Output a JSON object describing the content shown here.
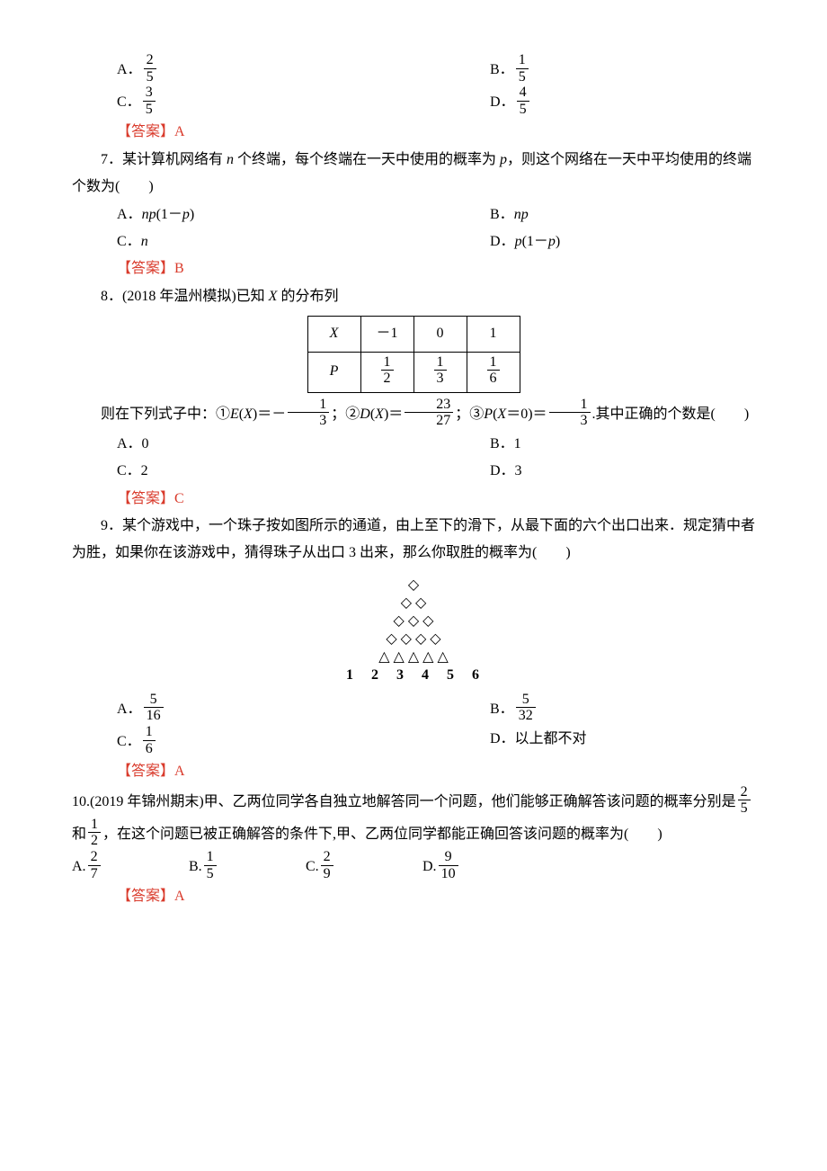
{
  "q6_options": {
    "a_label": "A．",
    "a_num": "2",
    "a_den": "5",
    "b_label": "B．",
    "b_num": "1",
    "b_den": "5",
    "c_label": "C．",
    "c_num": "3",
    "c_den": "5",
    "d_label": "D．",
    "d_num": "4",
    "d_den": "5"
  },
  "q6_answer": "【答案】A",
  "q7": {
    "text_before": "7．某计算机网络有 ",
    "var_n": "n",
    "text_mid1": " 个终端，每个终端在一天中使用的概率为 ",
    "var_p": "p",
    "text_after": "，则这个网络在一天中平均使用的终端个数为(　　)",
    "a_label": "A．",
    "a_val_pre": "np",
    "a_val_suf": "(1－",
    "a_val_p": "p",
    "a_val_end": ")",
    "b_label": "B．",
    "b_val": "np",
    "c_label": "C．",
    "c_val": "n",
    "d_label": "D．",
    "d_val_pre": "p",
    "d_val_suf": "(1－",
    "d_val_p": "p",
    "d_val_end": ")",
    "answer": "【答案】B"
  },
  "q8": {
    "text": "8．(2018 年温州模拟)已知 ",
    "var_x": "X",
    "text2": " 的分布列",
    "table": {
      "h1": "X",
      "v1": "－1",
      "v2": "0",
      "v3": "1",
      "h2": "P",
      "p1n": "1",
      "p1d": "2",
      "p2n": "1",
      "p2d": "3",
      "p3n": "1",
      "p3d": "6"
    },
    "line2_pre": "则在下列式子中：①",
    "e_label": "E",
    "x_label": "X",
    "eq1": "(",
    "eq1b": ")＝－",
    "f1n": "1",
    "f1d": "3",
    "sep1": "；②",
    "d_label": "D",
    "eq2a": "(",
    "eq2b": ")＝",
    "f2n": "23",
    "f2d": "27",
    "sep2": "；③",
    "p_label": "P",
    "eq3a": "(",
    "eq3b": "＝0)＝",
    "f3n": "1",
    "f3d": "3",
    "tail": ".其中正确的个数是(　　)",
    "a": "A．0",
    "b": "B．1",
    "c": "C．2",
    "d": "D．3",
    "answer": "【答案】C"
  },
  "q9": {
    "text": "9．某个游戏中，一个珠子按如图所示的通道，由上至下的滑下，从最下面的六个出口出来．规定猜中者为胜，如果你在该游戏中，猜得珠子从出口 3 出来，那么你取胜的概率为(　　)",
    "diagram_labels": "1　2　3　4　5　6",
    "a_label": "A．",
    "a_num": "5",
    "a_den": "16",
    "b_label": "B．",
    "b_num": "5",
    "b_den": "32",
    "c_label": "C．",
    "c_num": "1",
    "c_den": "6",
    "d_label": "D．以上都不对",
    "answer": "【答案】A"
  },
  "q10": {
    "text_a": "10.(2019 年锦州期末)甲、乙两位同学各自独立地解答同一个问题，他们能够正确解答该问题的概率分别是",
    "p1n": "2",
    "p1d": "5",
    "and": "和",
    "p2n": "1",
    "p2d": "2",
    "text_b": "，在这个问题已被正确解答的条件下,甲、乙两位同学都能正确回答该问题的概率为(　　)",
    "a_label": "A.",
    "a_num": "2",
    "a_den": "7",
    "b_label": "B.",
    "b_num": "1",
    "b_den": "5",
    "c_label": "C.",
    "c_num": "2",
    "c_den": "9",
    "d_label": "D.",
    "d_num": "9",
    "d_den": "10",
    "answer": "【答案】A"
  }
}
